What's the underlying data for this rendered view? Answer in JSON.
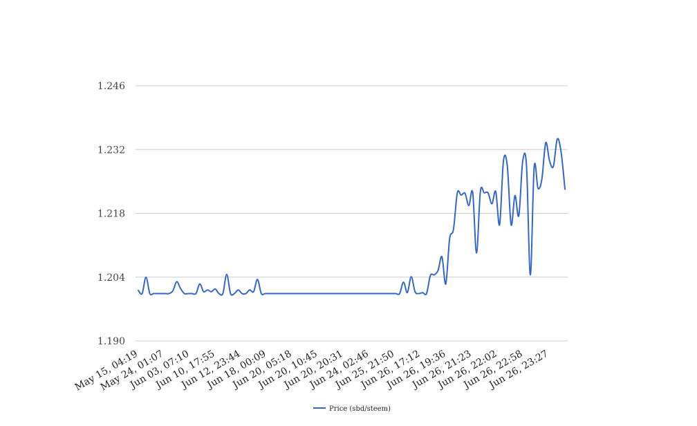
{
  "chart_data": {
    "type": "line",
    "title": "",
    "xlabel": "",
    "ylabel": "",
    "ylim": [
      1.19,
      1.246
    ],
    "y_ticks": [
      "1.246",
      "1.232",
      "1.218",
      "1.204",
      "1.190"
    ],
    "x_tick_labels": [
      "May 15, 04:19",
      "May 24, 01:07",
      "Jun 03, 07:10",
      "Jun 10, 17:55",
      "Jun 12, 23:44",
      "Jun 18, 00:09",
      "Jun 20, 05:18",
      "Jun 20, 10:45",
      "Jun 20, 20:31",
      "Jun 24, 02:46",
      "Jun 25, 21:50",
      "Jun 26, 17:12",
      "Jun 26, 19:36",
      "Jun 26, 21:23",
      "Jun 26, 22:02",
      "Jun 26, 22:58",
      "Jun 26, 23:27"
    ],
    "grid": true,
    "legend_position": "bottom",
    "series": [
      {
        "name": "Price (sbd/steem)",
        "color": "#3366cc",
        "values": [
          1.2011,
          1.2004,
          1.204,
          1.2004,
          1.2004,
          1.2004,
          1.2004,
          1.2004,
          1.2004,
          1.201,
          1.203,
          1.2015,
          1.2004,
          1.2004,
          1.2004,
          1.2004,
          1.2025,
          1.2008,
          1.2012,
          1.2008,
          1.2014,
          1.2004,
          1.2004,
          1.2046,
          1.2004,
          1.2004,
          1.2012,
          1.2004,
          1.2004,
          1.2012,
          1.2008,
          1.2035,
          1.2004,
          1.2004,
          1.2004,
          1.2004,
          1.2004,
          1.2004,
          1.2004,
          1.2004,
          1.2004,
          1.2004,
          1.2004,
          1.2004,
          1.2004,
          1.2004,
          1.2004,
          1.2004,
          1.2004,
          1.2004,
          1.2004,
          1.2004,
          1.2004,
          1.2004,
          1.2004,
          1.2004,
          1.2004,
          1.2004,
          1.2004,
          1.2004,
          1.2004,
          1.2004,
          1.2004,
          1.2004,
          1.2004,
          1.2004,
          1.2004,
          1.2004,
          1.2004,
          1.2029,
          1.2006,
          1.2041,
          1.2008,
          1.2004,
          1.2006,
          1.2004,
          1.2044,
          1.2045,
          1.2055,
          1.2085,
          1.2025,
          1.2124,
          1.2145,
          1.2225,
          1.222,
          1.2224,
          1.2197,
          1.2226,
          1.2093,
          1.2228,
          1.2225,
          1.2225,
          1.2201,
          1.2228,
          1.2155,
          1.2295,
          1.2285,
          1.2155,
          1.2219,
          1.2175,
          1.2294,
          1.2285,
          1.2045,
          1.2282,
          1.2235,
          1.2255,
          1.2335,
          1.2295,
          1.2283,
          1.2343,
          1.2315,
          1.2233
        ]
      }
    ]
  }
}
